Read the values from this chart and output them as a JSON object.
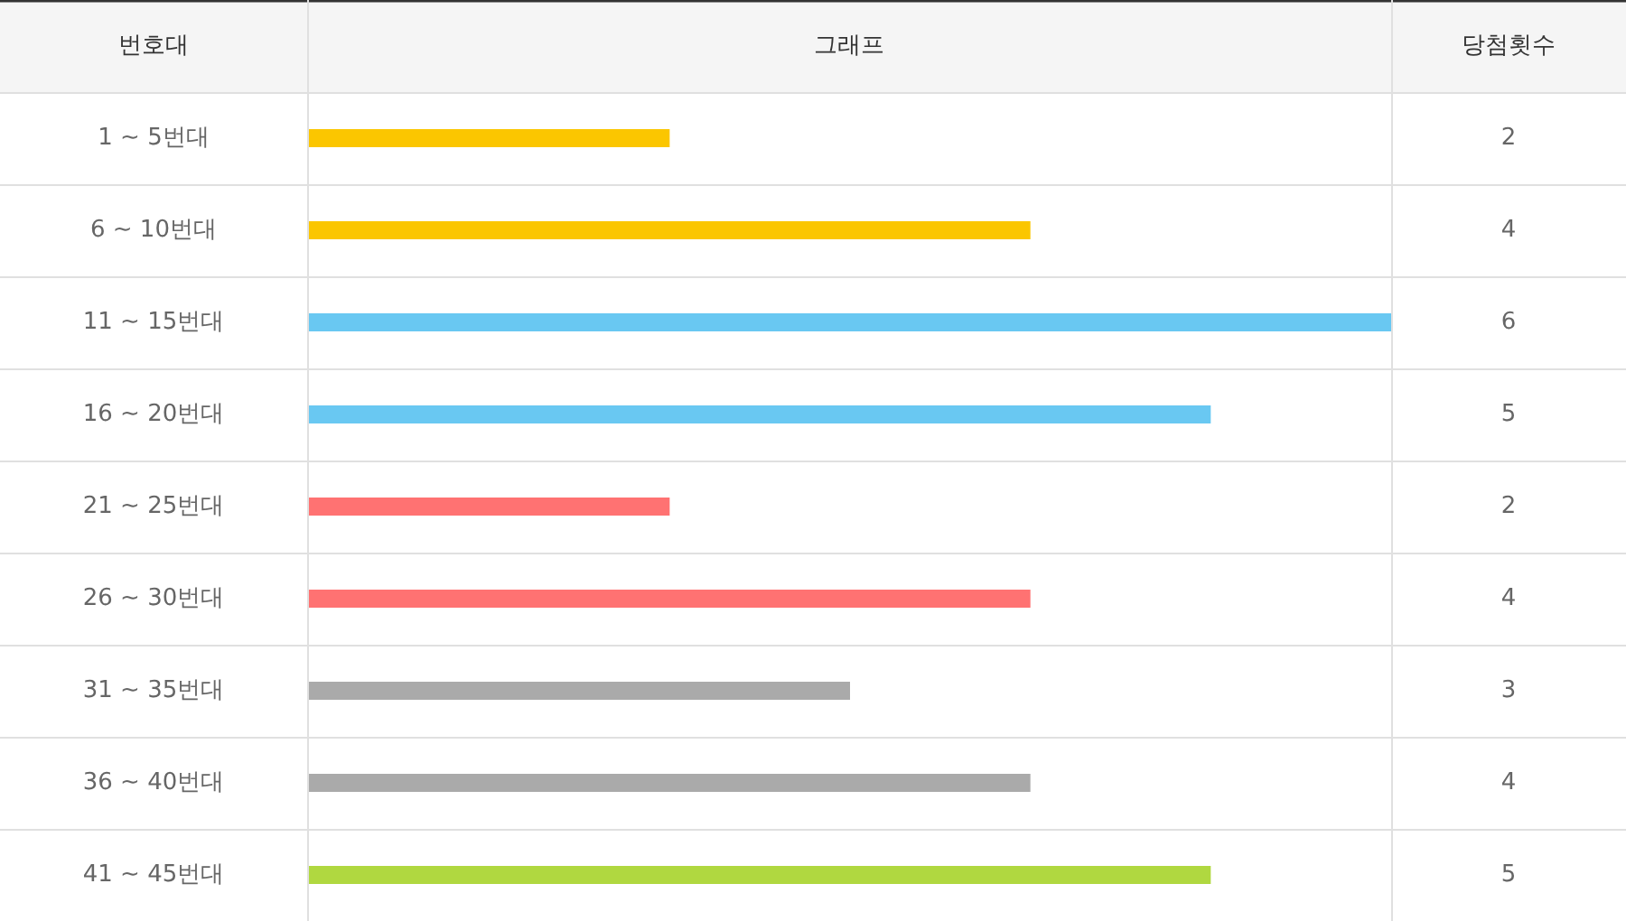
{
  "chart_data": {
    "type": "bar",
    "orientation": "horizontal",
    "title": "그래프",
    "ylabel": "번호대",
    "annotations": [
      "당첨횟수"
    ],
    "categories": [
      "1 ~ 5번대",
      "6 ~ 10번대",
      "11 ~ 15번대",
      "16 ~ 20번대",
      "21 ~ 25번대",
      "26 ~ 30번대",
      "31 ~ 35번대",
      "36 ~ 40번대",
      "41 ~ 45번대"
    ],
    "values": [
      2,
      4,
      6,
      5,
      2,
      4,
      3,
      4,
      5
    ],
    "colors": [
      "#fbc600",
      "#fbc600",
      "#69c8f2",
      "#69c8f2",
      "#ff7272",
      "#ff7272",
      "#aaaaaa",
      "#aaaaaa",
      "#b0d840"
    ],
    "data_labels": true
  }
}
